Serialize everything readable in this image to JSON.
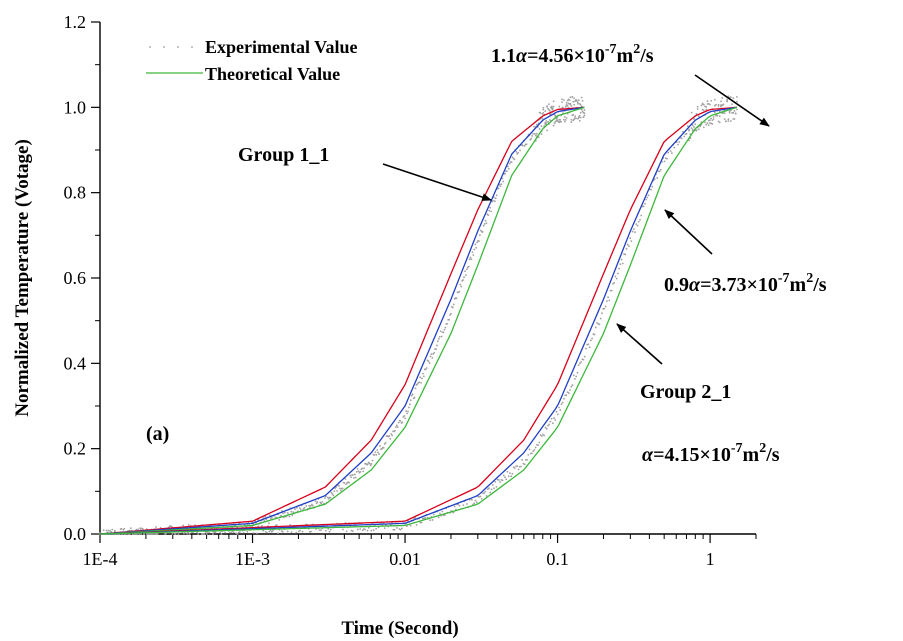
{
  "chart_data": {
    "type": "scatter",
    "xlabel": "Time (Second)",
    "ylabel": "Normalized Temperature (Votage)",
    "x_scale": "log",
    "xlim": [
      0.0001,
      2
    ],
    "ylim": [
      0,
      1.2
    ],
    "x_tick_values": [
      0.0001,
      0.001,
      0.01,
      0.1,
      1
    ],
    "x_tick_labels": [
      "1E-4",
      "1E-3",
      "0.01",
      "0.1",
      "1"
    ],
    "y_tick_values": [
      0.0,
      0.2,
      0.4,
      0.6,
      0.8,
      1.0,
      1.2
    ],
    "y_tick_labels": [
      "0.0",
      "0.2",
      "0.4",
      "0.6",
      "0.8",
      "1.0",
      "1.2"
    ],
    "grid": false,
    "legend_position": "top-left",
    "legend": [
      {
        "label": "Experimental Value",
        "marker": "dot",
        "color": "#a0a0a0"
      },
      {
        "label": "Theoretical Value",
        "marker": "line",
        "color": "#3cb83c"
      }
    ],
    "groups": [
      {
        "x": [
          0.0001,
          0.001,
          0.003,
          0.006,
          0.01,
          0.02,
          0.03,
          0.05,
          0.08,
          0.1,
          0.15
        ],
        "experimental": [
          0.0,
          0.02,
          0.08,
          0.17,
          0.28,
          0.52,
          0.69,
          0.88,
          0.97,
          0.99,
          1.0
        ],
        "theory_1_1a": [
          0.0,
          0.03,
          0.11,
          0.22,
          0.35,
          0.61,
          0.76,
          0.92,
          0.98,
          0.995,
          1.0
        ],
        "theory_a": [
          0.0,
          0.025,
          0.09,
          0.19,
          0.3,
          0.55,
          0.71,
          0.89,
          0.97,
          0.99,
          1.0
        ],
        "theory_0_9a": [
          0.0,
          0.02,
          0.07,
          0.15,
          0.25,
          0.47,
          0.63,
          0.84,
          0.95,
          0.98,
          1.0
        ]
      },
      {
        "x": [
          0.0001,
          0.01,
          0.03,
          0.06,
          0.1,
          0.2,
          0.3,
          0.5,
          0.8,
          1.0,
          1.5
        ],
        "experimental": [
          0.0,
          0.02,
          0.08,
          0.17,
          0.28,
          0.52,
          0.69,
          0.88,
          0.97,
          0.99,
          1.0
        ],
        "theory_1_1a": [
          0.0,
          0.03,
          0.11,
          0.22,
          0.35,
          0.61,
          0.76,
          0.92,
          0.98,
          0.995,
          1.0
        ],
        "theory_a": [
          0.0,
          0.025,
          0.09,
          0.19,
          0.3,
          0.55,
          0.71,
          0.89,
          0.97,
          0.99,
          1.0
        ],
        "theory_0_9a": [
          0.0,
          0.02,
          0.07,
          0.15,
          0.25,
          0.47,
          0.63,
          0.84,
          0.95,
          0.98,
          1.0
        ]
      }
    ],
    "theory_colors": {
      "theory_1_1a": "#d8001a",
      "theory_a": "#1f3fc8",
      "theory_0_9a": "#3cb83c"
    },
    "annotations": {
      "group1": "Group 1_1",
      "group2": "Group 2_1",
      "panel": "(a)",
      "a11_prefix": "1.1",
      "a11_value": "=4.56×10",
      "a11_exp": "-7",
      "a09_prefix": "0.9",
      "a09_value": "=3.73×10",
      "a09_exp": "-7",
      "a_value": "=4.15×10",
      "a_exp": "-7",
      "alpha": "α",
      "unit_m": "m",
      "unit_exp": "2",
      "unit_s": "/s"
    }
  }
}
